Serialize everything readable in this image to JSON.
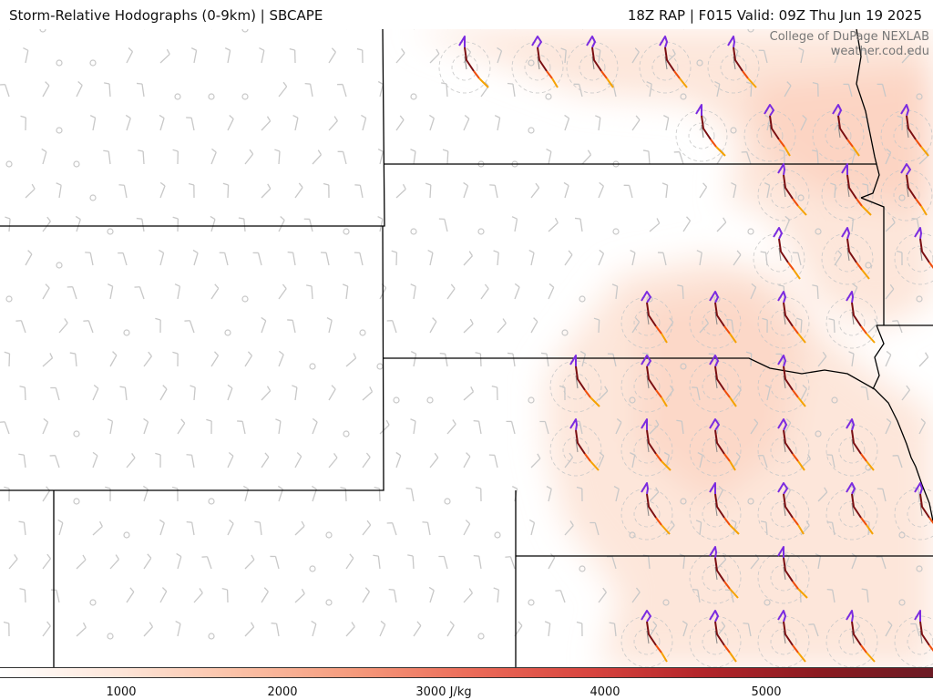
{
  "header": {
    "title_left": "Storm-Relative Hodographs (0-9km) | SBCAPE",
    "title_right": "18Z RAP | F015 Valid: 09Z Thu Jun 19 2025"
  },
  "credit": {
    "line1": "College of DuPage NEXLAB",
    "line2": "weather.cod.edu"
  },
  "colorbar": {
    "unit": "J/kg",
    "ticks": [
      "1000",
      "2000",
      "3000 J/kg",
      "4000",
      "5000"
    ],
    "stops": [
      "#ffffff",
      "#fde5d8",
      "#fbc2a8",
      "#f59a7c",
      "#ec6d5a",
      "#d8453f",
      "#b3252a",
      "#8a1a20",
      "#6b1a24"
    ]
  },
  "colors": {
    "hodo_low": "#7b2be0",
    "hodo_mid": "#7a0f12",
    "hodo_upper": "#f04e0c",
    "hodo_top": "#f5a200",
    "cape_shade": "#fde6da",
    "barb": "#c8c8c8",
    "border": "#000000"
  }
}
